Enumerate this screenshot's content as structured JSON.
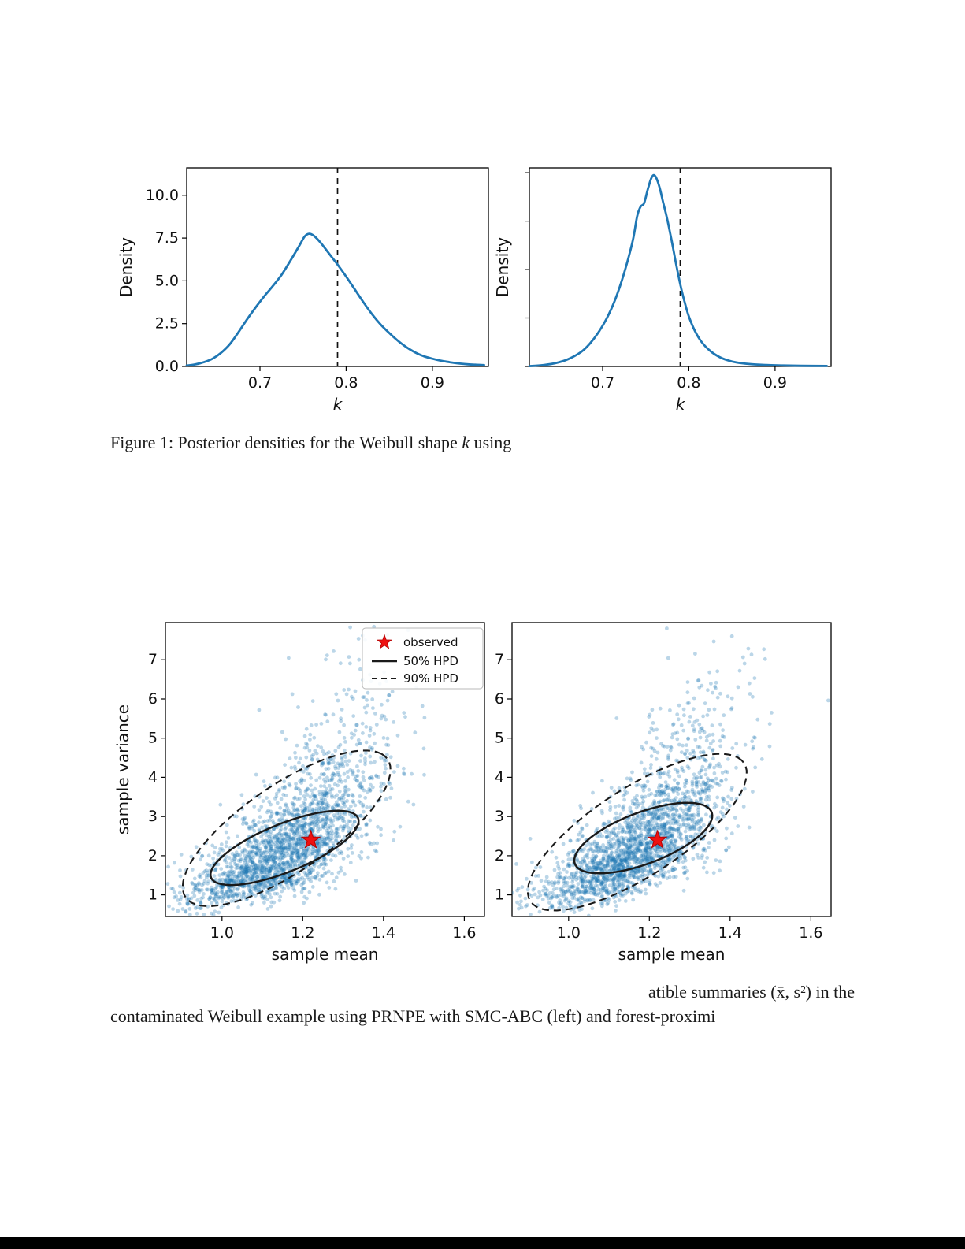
{
  "captions": {
    "fig1_pre": "Figure 1: Posterior densities for the Weibull shape ",
    "fig1_math": "k",
    "fig1_post": " using",
    "fig2_line1": "atible summaries (x̄, s²) in the",
    "fig2_line2": "contaminated Weibull example using PRNPE with SMC-ABC (left) and forest-proximi"
  },
  "chart_data": [
    {
      "id": "density_left",
      "type": "line",
      "title": "",
      "xlabel": "k",
      "ylabel": "Density",
      "xlim": [
        0.615,
        0.965
      ],
      "ylim": [
        0,
        11.6
      ],
      "xticks": [
        0.7,
        0.8,
        0.9
      ],
      "xtick_labels": [
        "0.7",
        "0.8",
        "0.9"
      ],
      "yticks": [
        0,
        2.5,
        5,
        7.5,
        10
      ],
      "ytick_labels": [
        "0.0",
        "2.5",
        "5.0",
        "7.5",
        "10.0"
      ],
      "vline_x": 0.79,
      "line_color": "#1f77b4",
      "vline_color": "#111111",
      "curve": [
        [
          0.615,
          0.05
        ],
        [
          0.625,
          0.12
        ],
        [
          0.635,
          0.25
        ],
        [
          0.645,
          0.45
        ],
        [
          0.655,
          0.8
        ],
        [
          0.665,
          1.3
        ],
        [
          0.675,
          2.0
        ],
        [
          0.685,
          2.75
        ],
        [
          0.695,
          3.45
        ],
        [
          0.705,
          4.1
        ],
        [
          0.715,
          4.7
        ],
        [
          0.725,
          5.35
        ],
        [
          0.735,
          6.15
        ],
        [
          0.745,
          7.0
        ],
        [
          0.752,
          7.6
        ],
        [
          0.757,
          7.75
        ],
        [
          0.762,
          7.65
        ],
        [
          0.77,
          7.25
        ],
        [
          0.78,
          6.6
        ],
        [
          0.79,
          5.95
        ],
        [
          0.8,
          5.25
        ],
        [
          0.81,
          4.5
        ],
        [
          0.82,
          3.75
        ],
        [
          0.83,
          3.05
        ],
        [
          0.84,
          2.45
        ],
        [
          0.85,
          1.95
        ],
        [
          0.86,
          1.5
        ],
        [
          0.87,
          1.12
        ],
        [
          0.88,
          0.82
        ],
        [
          0.89,
          0.6
        ],
        [
          0.9,
          0.45
        ],
        [
          0.91,
          0.33
        ],
        [
          0.92,
          0.25
        ],
        [
          0.93,
          0.18
        ],
        [
          0.94,
          0.13
        ],
        [
          0.95,
          0.1
        ],
        [
          0.96,
          0.08
        ]
      ]
    },
    {
      "id": "density_right",
      "type": "line",
      "title": "",
      "xlabel": "k",
      "ylabel": "Density",
      "xlim": [
        0.615,
        0.965
      ],
      "ylim": [
        0,
        12.3
      ],
      "xticks": [
        0.7,
        0.8,
        0.9
      ],
      "xtick_labels": [
        "0.7",
        "0.8",
        "0.9"
      ],
      "yticks": [
        0,
        3,
        6,
        9,
        12
      ],
      "ytick_labels": [
        "",
        "",
        "",
        "",
        ""
      ],
      "vline_x": 0.79,
      "line_color": "#1f77b4",
      "vline_color": "#111111",
      "curve": [
        [
          0.615,
          0.02
        ],
        [
          0.63,
          0.08
        ],
        [
          0.645,
          0.2
        ],
        [
          0.66,
          0.45
        ],
        [
          0.675,
          0.9
        ],
        [
          0.685,
          1.4
        ],
        [
          0.695,
          2.1
        ],
        [
          0.705,
          3.0
        ],
        [
          0.715,
          4.2
        ],
        [
          0.725,
          5.8
        ],
        [
          0.735,
          7.8
        ],
        [
          0.74,
          9.3
        ],
        [
          0.744,
          9.9
        ],
        [
          0.748,
          10.1
        ],
        [
          0.752,
          10.9
        ],
        [
          0.756,
          11.6
        ],
        [
          0.759,
          11.85
        ],
        [
          0.762,
          11.7
        ],
        [
          0.766,
          11.1
        ],
        [
          0.77,
          10.2
        ],
        [
          0.775,
          9.1
        ],
        [
          0.78,
          7.8
        ],
        [
          0.785,
          6.4
        ],
        [
          0.79,
          5.1
        ],
        [
          0.795,
          4.0
        ],
        [
          0.8,
          3.1
        ],
        [
          0.807,
          2.2
        ],
        [
          0.815,
          1.5
        ],
        [
          0.825,
          0.95
        ],
        [
          0.835,
          0.6
        ],
        [
          0.845,
          0.38
        ],
        [
          0.855,
          0.25
        ],
        [
          0.87,
          0.15
        ],
        [
          0.89,
          0.09
        ],
        [
          0.91,
          0.06
        ],
        [
          0.93,
          0.04
        ],
        [
          0.96,
          0.03
        ]
      ]
    },
    {
      "id": "scatter_left",
      "type": "scatter",
      "title": "",
      "xlabel": "sample mean",
      "ylabel": "sample variance",
      "xlim": [
        0.86,
        1.65
      ],
      "ylim": [
        0.45,
        7.95
      ],
      "xticks": [
        1.0,
        1.2,
        1.4,
        1.6
      ],
      "xtick_labels": [
        "1.0",
        "1.2",
        "1.4",
        "1.6"
      ],
      "yticks": [
        1,
        2,
        3,
        4,
        5,
        6,
        7
      ],
      "ytick_labels": [
        "1",
        "2",
        "3",
        "4",
        "5",
        "6",
        "7"
      ],
      "observed": [
        1.22,
        2.4
      ],
      "point_color": "#1f77b4",
      "point_alpha": 0.3,
      "contour_color": "#1a1a1a",
      "star_color": "#ee1111",
      "generator": {
        "n": 2200,
        "seed": 11,
        "x_mean": 1.165,
        "x_sd": 0.115,
        "x_noise": 0.018,
        "logy_mean": 0.78,
        "logy_slope": 0.36,
        "logy_sd": 0.32
      },
      "hpd50": {
        "cx": 1.155,
        "cy": 2.2,
        "ax": 0.175,
        "ay": 0.85,
        "bx": 0.055,
        "by": -0.42
      },
      "hpd90": {
        "cx": 1.16,
        "cy": 2.7,
        "ax": 0.235,
        "ay": 1.9,
        "bx": 0.105,
        "by": -0.58
      },
      "legend": {
        "labels": [
          "observed",
          "50% HPD",
          "90% HPD"
        ]
      }
    },
    {
      "id": "scatter_right",
      "type": "scatter",
      "title": "",
      "xlabel": "sample mean",
      "ylabel": "",
      "xlim": [
        0.86,
        1.65
      ],
      "ylim": [
        0.45,
        7.95
      ],
      "xticks": [
        1.0,
        1.2,
        1.4,
        1.6
      ],
      "xtick_labels": [
        "1.0",
        "1.2",
        "1.4",
        "1.6"
      ],
      "yticks": [
        1,
        2,
        3,
        4,
        5,
        6,
        7
      ],
      "ytick_labels": [
        "1",
        "2",
        "3",
        "4",
        "5",
        "6",
        "7"
      ],
      "observed": [
        1.22,
        2.4
      ],
      "point_color": "#1f77b4",
      "point_alpha": 0.3,
      "contour_color": "#1a1a1a",
      "star_color": "#ee1111",
      "generator": {
        "n": 2200,
        "seed": 23,
        "x_mean": 1.175,
        "x_sd": 0.115,
        "x_noise": 0.018,
        "logy_mean": 0.8,
        "logy_slope": 0.36,
        "logy_sd": 0.32
      },
      "hpd50": {
        "cx": 1.185,
        "cy": 2.45,
        "ax": 0.16,
        "ay": 0.78,
        "bx": 0.06,
        "by": -0.45
      },
      "hpd90": {
        "cx": 1.17,
        "cy": 2.6,
        "ax": 0.25,
        "ay": 1.9,
        "bx": 0.105,
        "by": -0.62
      }
    }
  ]
}
